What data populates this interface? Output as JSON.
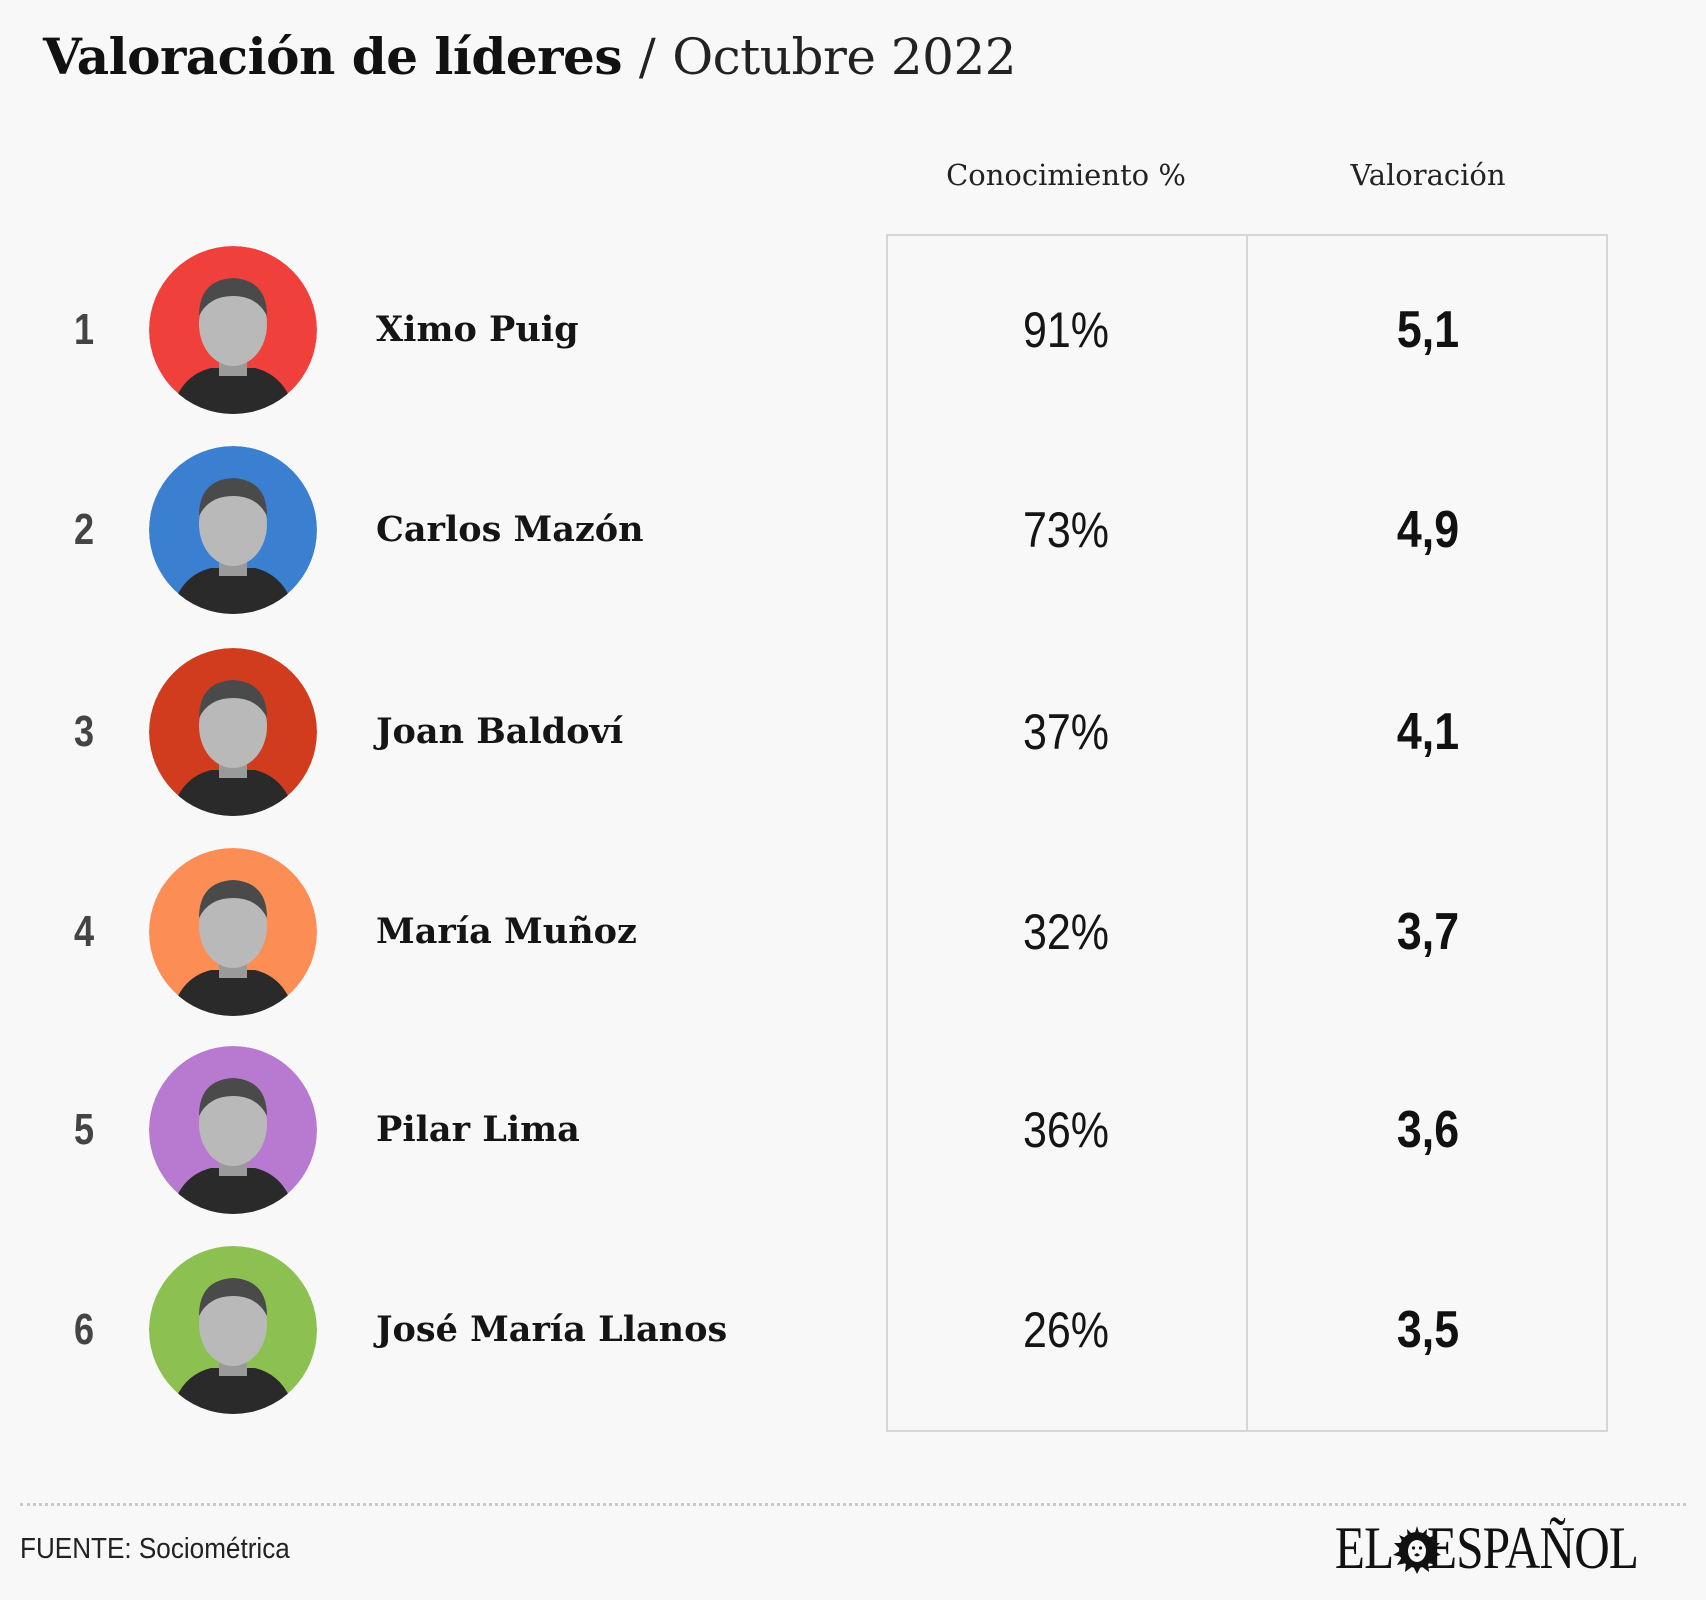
{
  "header": {
    "title": "Valoración de líderes",
    "separator": "/",
    "subtitle": "Octubre 2022"
  },
  "columns": {
    "knowledge": "Conocimiento %",
    "rating": "Valoración"
  },
  "chart_data": {
    "type": "table",
    "title": "Valoración de líderes / Octubre 2022",
    "columns": [
      "Conocimiento %",
      "Valoración"
    ],
    "rows": [
      {
        "rank": "1",
        "name": "Ximo Puig",
        "knowledge": "91%",
        "rating": "5,1",
        "knowledge_value": 91,
        "rating_value": 5.1,
        "color": "#f0403c"
      },
      {
        "rank": "2",
        "name": "Carlos Mazón",
        "knowledge": "73%",
        "rating": "4,9",
        "knowledge_value": 73,
        "rating_value": 4.9,
        "color": "#3a7fd0"
      },
      {
        "rank": "3",
        "name": "Joan Baldoví",
        "knowledge": "37%",
        "rating": "4,1",
        "knowledge_value": 37,
        "rating_value": 4.1,
        "color": "#d23c1e"
      },
      {
        "rank": "4",
        "name": "María Muñoz",
        "knowledge": "32%",
        "rating": "3,7",
        "knowledge_value": 32,
        "rating_value": 3.7,
        "color": "#fb8d55"
      },
      {
        "rank": "5",
        "name": "Pilar Lima",
        "knowledge": "36%",
        "rating": "3,6",
        "knowledge_value": 36,
        "rating_value": 3.6,
        "color": "#b87ad0"
      },
      {
        "rank": "6",
        "name": "José María Llanos",
        "knowledge": "26%",
        "rating": "3,5",
        "knowledge_value": 26,
        "rating_value": 3.5,
        "color": "#8cc050"
      }
    ]
  },
  "footer": {
    "source": "FUENTE: Sociométrica",
    "logo_left": "EL",
    "logo_right": "ESPAÑOL",
    "logo_icon": "lion-icon"
  }
}
